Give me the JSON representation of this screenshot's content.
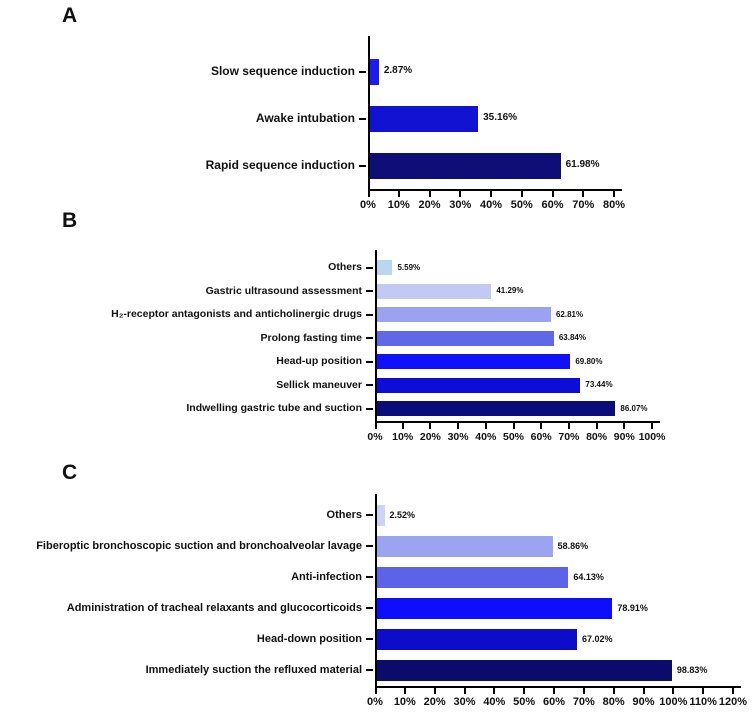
{
  "figure": {
    "background": "#ffffff"
  },
  "chart_data": [
    {
      "panel_label": "A",
      "type": "bar",
      "orientation": "horizontal",
      "title": "",
      "xlabel": "",
      "ylabel": "",
      "xlim": [
        0,
        80
      ],
      "grid": false,
      "x_ticks": [
        0,
        10,
        20,
        30,
        40,
        50,
        60,
        70,
        80
      ],
      "x_tick_labels": [
        "0%",
        "10%",
        "20%",
        "30%",
        "40%",
        "50%",
        "60%",
        "70%",
        "80%"
      ],
      "categories": [
        "Slow sequence induction",
        "Awake intubation",
        "Rapid sequence induction"
      ],
      "values": [
        2.87,
        35.16,
        61.98
      ],
      "value_labels": [
        "2.87%",
        "35.16%",
        "61.98%"
      ],
      "bar_colors": [
        "#1b1bf2",
        "#1212d2",
        "#0e0e76"
      ]
    },
    {
      "panel_label": "B",
      "type": "bar",
      "orientation": "horizontal",
      "title": "",
      "xlabel": "",
      "ylabel": "",
      "xlim": [
        0,
        100
      ],
      "grid": false,
      "x_ticks": [
        0,
        10,
        20,
        30,
        40,
        50,
        60,
        70,
        80,
        90,
        100
      ],
      "x_tick_labels": [
        "0%",
        "10%",
        "20%",
        "30%",
        "40%",
        "50%",
        "60%",
        "70%",
        "80%",
        "90%",
        "100%"
      ],
      "categories": [
        "Others",
        "Gastric ultrasound assessment",
        "H₂-receptor antagonists and anticholinergic drugs",
        "Prolong fasting time",
        "Head-up position",
        "Sellick maneuver",
        "Indwelling gastric tube and suction"
      ],
      "values": [
        5.59,
        41.29,
        62.81,
        63.84,
        69.8,
        73.44,
        86.07
      ],
      "value_labels": [
        "5.59%",
        "41.29%",
        "62.81%",
        "63.84%",
        "69.80%",
        "73.44%",
        "86.07%"
      ],
      "bar_colors": [
        "#b9d6f2",
        "#c4c9f4",
        "#9ba2f0",
        "#5f68e9",
        "#1010fc",
        "#0d0dd8",
        "#0b0b7a"
      ]
    },
    {
      "panel_label": "C",
      "type": "bar",
      "orientation": "horizontal",
      "title": "",
      "xlabel": "",
      "ylabel": "",
      "xlim": [
        0,
        120
      ],
      "grid": false,
      "x_ticks": [
        0,
        10,
        20,
        30,
        40,
        50,
        60,
        70,
        80,
        90,
        100,
        110,
        120
      ],
      "x_tick_labels": [
        "0%",
        "10%",
        "20%",
        "30%",
        "40%",
        "50%",
        "60%",
        "70%",
        "80%",
        "90%",
        "100%",
        "110%",
        "120%"
      ],
      "categories": [
        "Others",
        "Fiberoptic bronchoscopic suction and bronchoalveolar lavage",
        "Anti-infection",
        "Administration of tracheal relaxants and glucocorticoids",
        "Head-down position",
        "Immediately suction the refluxed material"
      ],
      "values": [
        2.52,
        58.86,
        64.13,
        78.91,
        67.02,
        98.83
      ],
      "value_labels": [
        "2.52%",
        "58.86%",
        "64.13%",
        "78.91%",
        "67.02%",
        "98.83%"
      ],
      "bar_colors": [
        "#ced2f6",
        "#9ba4f1",
        "#5c63e9",
        "#0e0efe",
        "#0c0cca",
        "#0b0b6c"
      ]
    }
  ]
}
